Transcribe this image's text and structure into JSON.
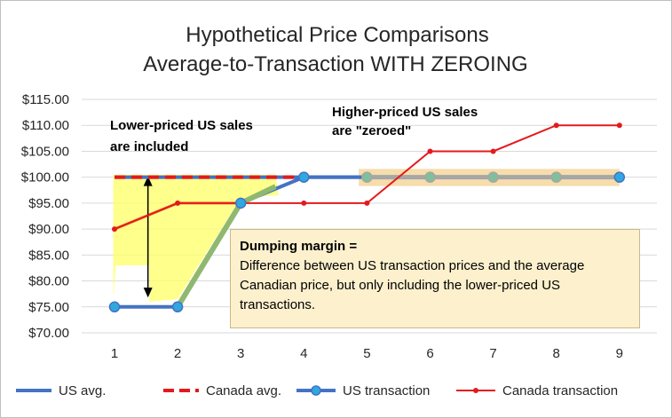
{
  "chart_data": {
    "type": "line",
    "title": [
      "Hypothetical Price Comparisons",
      "Average-to-Transaction  WITH ZEROING"
    ],
    "x": [
      1,
      2,
      3,
      4,
      5,
      6,
      7,
      8,
      9
    ],
    "x_tick_labels": [
      "1",
      "2",
      "3",
      "4",
      "5",
      "6",
      "7",
      "8",
      "9"
    ],
    "ylim": [
      70,
      115
    ],
    "y_tick_labels": [
      "$115.00",
      "$110.00",
      "$105.00",
      "$100.00",
      "$95.00",
      "$90.00",
      "$85.00",
      "$80.00",
      "$75.00",
      "$70.00"
    ],
    "y_tick_values": [
      115,
      110,
      105,
      100,
      95,
      90,
      85,
      80,
      75,
      70
    ],
    "grid": "horizontal",
    "legend_position": "bottom",
    "series": [
      {
        "name": "US avg.",
        "style": "solid",
        "color": "#4472c4",
        "values": [
          100,
          100,
          100,
          100,
          100,
          100,
          100,
          100,
          100
        ]
      },
      {
        "name": "Canada avg.",
        "style": "dashed",
        "color": "#e31a1c",
        "values": [
          100,
          100,
          100,
          100,
          100,
          100,
          100,
          100,
          100
        ]
      },
      {
        "name": "US transaction",
        "style": "markers",
        "color": "#4472c4",
        "marker_fill": "#2fa8e0",
        "values": [
          75,
          75,
          95,
          100,
          100,
          100,
          100,
          100,
          100
        ]
      },
      {
        "name": "Canada transaction",
        "style": "line-dots",
        "color": "#e31a1c",
        "values": [
          90,
          95,
          95,
          95,
          95,
          105,
          105,
          110,
          110
        ]
      }
    ],
    "overlays": {
      "included_fill_color": "#ffff66",
      "zeroed_band_color": "#f5d79e",
      "included_trace_color": "#ed7d31",
      "included_segment_color": "#8fb870",
      "zeroed_segment_color": "#a6a6a6"
    },
    "annotations": {
      "lower_priced": [
        "Lower-priced US sales",
        "are included"
      ],
      "higher_priced": [
        "Higher-priced US sales",
        "are \"zeroed\""
      ],
      "margin_box": {
        "heading": "Dumping margin =",
        "body": "Difference between US transaction prices and the average Canadian price, but only including the lower-priced US transactions."
      }
    }
  }
}
